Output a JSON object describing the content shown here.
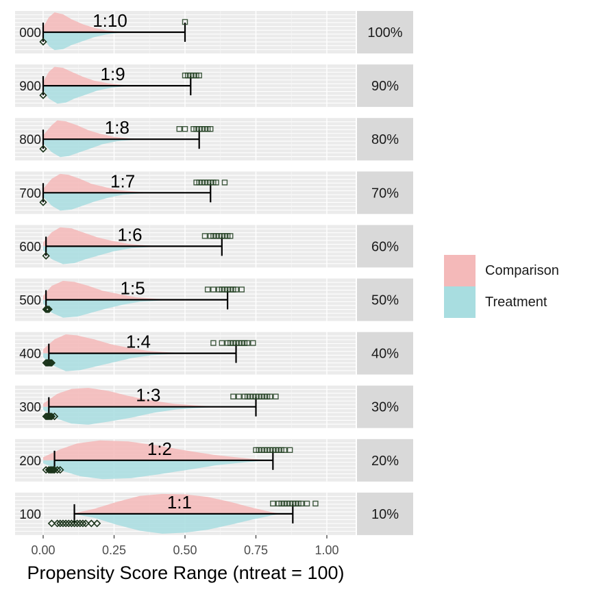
{
  "chart_data": {
    "type": "area",
    "xlabel": "Propensity Score Range (ntreat = 100)",
    "xlim": [
      0,
      1.1
    ],
    "x_ticks": [
      0.0,
      0.25,
      0.5,
      0.75,
      1.0
    ],
    "x_tick_labels": [
      "0.00",
      "0.25",
      "0.50",
      "0.75",
      "1.00"
    ],
    "legend_position": "right",
    "legend": [
      {
        "name": "Comparison",
        "color": "#f4b9b9"
      },
      {
        "name": "Treatment",
        "color": "#a8dde0"
      }
    ],
    "panels": [
      {
        "left_label": "000",
        "strip": "100%",
        "ratio_label": "1:10",
        "range_min": 0.0,
        "range_max": 0.5,
        "diamonds": [
          0.0
        ],
        "squares": [
          0.5
        ],
        "comp_density": [
          [
            0,
            0.25
          ],
          [
            0.02,
            0.75
          ],
          [
            0.04,
            1.0
          ],
          [
            0.07,
            0.9
          ],
          [
            0.1,
            0.65
          ],
          [
            0.14,
            0.4
          ],
          [
            0.18,
            0.22
          ],
          [
            0.22,
            0.1
          ],
          [
            0.26,
            0.04
          ],
          [
            0.3,
            0
          ]
        ],
        "treat_density": [
          [
            0,
            0.25
          ],
          [
            0.02,
            0.7
          ],
          [
            0.04,
            0.9
          ],
          [
            0.07,
            0.85
          ],
          [
            0.1,
            0.65
          ],
          [
            0.14,
            0.45
          ],
          [
            0.18,
            0.25
          ],
          [
            0.22,
            0.12
          ],
          [
            0.26,
            0.04
          ],
          [
            0.3,
            0
          ]
        ]
      },
      {
        "left_label": "900",
        "strip": "90%",
        "ratio_label": "1:9",
        "range_min": 0.0,
        "range_max": 0.52,
        "diamonds": [
          0.0
        ],
        "squares": [
          0.5,
          0.51,
          0.52,
          0.53,
          0.54,
          0.55
        ],
        "comp_density": [
          [
            0,
            0.2
          ],
          [
            0.02,
            0.7
          ],
          [
            0.04,
            0.95
          ],
          [
            0.07,
            0.9
          ],
          [
            0.1,
            0.7
          ],
          [
            0.14,
            0.45
          ],
          [
            0.18,
            0.25
          ],
          [
            0.23,
            0.12
          ],
          [
            0.28,
            0.04
          ],
          [
            0.32,
            0
          ]
        ],
        "treat_density": [
          [
            0,
            0.2
          ],
          [
            0.02,
            0.65
          ],
          [
            0.05,
            0.9
          ],
          [
            0.08,
            0.85
          ],
          [
            0.11,
            0.65
          ],
          [
            0.15,
            0.45
          ],
          [
            0.19,
            0.25
          ],
          [
            0.24,
            0.1
          ],
          [
            0.29,
            0.03
          ],
          [
            0.32,
            0
          ]
        ]
      },
      {
        "left_label": "800",
        "strip": "80%",
        "ratio_label": "1:8",
        "range_min": 0.0,
        "range_max": 0.55,
        "diamonds": [
          0.0
        ],
        "squares": [
          0.48,
          0.5,
          0.53,
          0.54,
          0.55,
          0.56,
          0.57,
          0.58,
          0.59
        ],
        "comp_density": [
          [
            0,
            0.2
          ],
          [
            0.03,
            0.7
          ],
          [
            0.05,
            0.95
          ],
          [
            0.08,
            0.9
          ],
          [
            0.12,
            0.7
          ],
          [
            0.16,
            0.45
          ],
          [
            0.2,
            0.28
          ],
          [
            0.25,
            0.12
          ],
          [
            0.3,
            0.05
          ],
          [
            0.35,
            0
          ]
        ],
        "treat_density": [
          [
            0,
            0.2
          ],
          [
            0.03,
            0.65
          ],
          [
            0.06,
            0.9
          ],
          [
            0.09,
            0.85
          ],
          [
            0.13,
            0.65
          ],
          [
            0.17,
            0.45
          ],
          [
            0.21,
            0.25
          ],
          [
            0.26,
            0.1
          ],
          [
            0.31,
            0.04
          ],
          [
            0.35,
            0
          ]
        ]
      },
      {
        "left_label": "700",
        "strip": "70%",
        "ratio_label": "1:7",
        "range_min": 0.0,
        "range_max": 0.59,
        "diamonds": [
          0.0
        ],
        "squares": [
          0.54,
          0.55,
          0.56,
          0.57,
          0.58,
          0.59,
          0.6,
          0.61,
          0.64
        ],
        "comp_density": [
          [
            0,
            0.2
          ],
          [
            0.03,
            0.7
          ],
          [
            0.06,
            0.95
          ],
          [
            0.09,
            0.9
          ],
          [
            0.13,
            0.7
          ],
          [
            0.17,
            0.45
          ],
          [
            0.22,
            0.28
          ],
          [
            0.27,
            0.12
          ],
          [
            0.33,
            0.05
          ],
          [
            0.38,
            0
          ]
        ],
        "treat_density": [
          [
            0,
            0.2
          ],
          [
            0.03,
            0.65
          ],
          [
            0.06,
            0.9
          ],
          [
            0.1,
            0.85
          ],
          [
            0.14,
            0.65
          ],
          [
            0.18,
            0.45
          ],
          [
            0.23,
            0.25
          ],
          [
            0.28,
            0.1
          ],
          [
            0.34,
            0.04
          ],
          [
            0.38,
            0
          ]
        ]
      },
      {
        "left_label": "600",
        "strip": "60%",
        "ratio_label": "1:6",
        "range_min": 0.01,
        "range_max": 0.63,
        "diamonds": [
          0.01
        ],
        "squares": [
          0.57,
          0.59,
          0.6,
          0.61,
          0.62,
          0.63,
          0.64,
          0.65,
          0.66
        ],
        "comp_density": [
          [
            0,
            0.2
          ],
          [
            0.03,
            0.7
          ],
          [
            0.06,
            0.95
          ],
          [
            0.1,
            0.9
          ],
          [
            0.14,
            0.7
          ],
          [
            0.19,
            0.45
          ],
          [
            0.24,
            0.28
          ],
          [
            0.3,
            0.12
          ],
          [
            0.36,
            0.05
          ],
          [
            0.42,
            0
          ]
        ],
        "treat_density": [
          [
            0,
            0.2
          ],
          [
            0.03,
            0.65
          ],
          [
            0.07,
            0.9
          ],
          [
            0.11,
            0.85
          ],
          [
            0.15,
            0.65
          ],
          [
            0.2,
            0.45
          ],
          [
            0.25,
            0.25
          ],
          [
            0.31,
            0.1
          ],
          [
            0.37,
            0.04
          ],
          [
            0.42,
            0
          ]
        ]
      },
      {
        "left_label": "500",
        "strip": "50%",
        "ratio_label": "1:5",
        "range_min": 0.01,
        "range_max": 0.65,
        "diamonds": [
          0.01,
          0.015,
          0.02
        ],
        "squares": [
          0.58,
          0.6,
          0.62,
          0.63,
          0.64,
          0.65,
          0.66,
          0.67,
          0.68,
          0.7
        ],
        "comp_density": [
          [
            0,
            0.2
          ],
          [
            0.03,
            0.7
          ],
          [
            0.07,
            0.95
          ],
          [
            0.11,
            0.9
          ],
          [
            0.16,
            0.7
          ],
          [
            0.21,
            0.45
          ],
          [
            0.27,
            0.28
          ],
          [
            0.33,
            0.12
          ],
          [
            0.4,
            0.05
          ],
          [
            0.46,
            0
          ]
        ],
        "treat_density": [
          [
            0,
            0.2
          ],
          [
            0.03,
            0.65
          ],
          [
            0.07,
            0.9
          ],
          [
            0.12,
            0.85
          ],
          [
            0.17,
            0.65
          ],
          [
            0.22,
            0.45
          ],
          [
            0.28,
            0.25
          ],
          [
            0.34,
            0.1
          ],
          [
            0.41,
            0.04
          ],
          [
            0.46,
            0
          ]
        ]
      },
      {
        "left_label": "400",
        "strip": "40%",
        "ratio_label": "1:4",
        "range_min": 0.02,
        "range_max": 0.68,
        "diamonds": [
          0.01,
          0.015,
          0.02,
          0.025,
          0.03
        ],
        "squares": [
          0.6,
          0.63,
          0.65,
          0.66,
          0.67,
          0.68,
          0.69,
          0.7,
          0.71,
          0.72,
          0.74
        ],
        "comp_density": [
          [
            0,
            0.2
          ],
          [
            0.04,
            0.7
          ],
          [
            0.08,
            0.95
          ],
          [
            0.12,
            0.9
          ],
          [
            0.18,
            0.7
          ],
          [
            0.24,
            0.45
          ],
          [
            0.3,
            0.28
          ],
          [
            0.37,
            0.12
          ],
          [
            0.44,
            0.05
          ],
          [
            0.52,
            0
          ]
        ],
        "treat_density": [
          [
            0,
            0.2
          ],
          [
            0.04,
            0.65
          ],
          [
            0.08,
            0.9
          ],
          [
            0.13,
            0.85
          ],
          [
            0.19,
            0.65
          ],
          [
            0.25,
            0.45
          ],
          [
            0.31,
            0.25
          ],
          [
            0.38,
            0.1
          ],
          [
            0.45,
            0.04
          ],
          [
            0.52,
            0
          ]
        ]
      },
      {
        "left_label": "300",
        "strip": "30%",
        "ratio_label": "1:3",
        "range_min": 0.02,
        "range_max": 0.75,
        "diamonds": [
          0.01,
          0.015,
          0.02,
          0.025,
          0.03,
          0.04
        ],
        "squares": [
          0.67,
          0.69,
          0.71,
          0.72,
          0.73,
          0.74,
          0.75,
          0.76,
          0.77,
          0.78,
          0.79,
          0.8,
          0.82
        ],
        "comp_density": [
          [
            0,
            0.15
          ],
          [
            0.05,
            0.65
          ],
          [
            0.1,
            0.9
          ],
          [
            0.16,
            0.95
          ],
          [
            0.23,
            0.8
          ],
          [
            0.3,
            0.55
          ],
          [
            0.38,
            0.32
          ],
          [
            0.46,
            0.15
          ],
          [
            0.55,
            0.06
          ],
          [
            0.63,
            0
          ]
        ],
        "treat_density": [
          [
            0,
            0.15
          ],
          [
            0.05,
            0.6
          ],
          [
            0.1,
            0.85
          ],
          [
            0.16,
            0.9
          ],
          [
            0.23,
            0.75
          ],
          [
            0.31,
            0.55
          ],
          [
            0.39,
            0.3
          ],
          [
            0.47,
            0.13
          ],
          [
            0.56,
            0.05
          ],
          [
            0.63,
            0
          ]
        ]
      },
      {
        "left_label": "200",
        "strip": "20%",
        "ratio_label": "1:2",
        "range_min": 0.04,
        "range_max": 0.81,
        "diamonds": [
          0.01,
          0.02,
          0.025,
          0.03,
          0.035,
          0.04,
          0.05,
          0.06
        ],
        "squares": [
          0.75,
          0.76,
          0.77,
          0.78,
          0.79,
          0.8,
          0.81,
          0.82,
          0.83,
          0.84,
          0.85,
          0.87
        ],
        "comp_density": [
          [
            0,
            0.15
          ],
          [
            0.06,
            0.55
          ],
          [
            0.12,
            0.85
          ],
          [
            0.2,
            1.0
          ],
          [
            0.3,
            0.95
          ],
          [
            0.4,
            0.75
          ],
          [
            0.5,
            0.5
          ],
          [
            0.6,
            0.28
          ],
          [
            0.7,
            0.12
          ],
          [
            0.8,
            0
          ]
        ],
        "treat_density": [
          [
            0,
            0.15
          ],
          [
            0.06,
            0.5
          ],
          [
            0.13,
            0.8
          ],
          [
            0.21,
            0.95
          ],
          [
            0.31,
            0.9
          ],
          [
            0.41,
            0.7
          ],
          [
            0.51,
            0.48
          ],
          [
            0.61,
            0.25
          ],
          [
            0.71,
            0.1
          ],
          [
            0.8,
            0
          ]
        ]
      },
      {
        "left_label": "100",
        "strip": "10%",
        "ratio_label": "1:1",
        "range_min": 0.11,
        "range_max": 0.88,
        "diamonds": [
          0.03,
          0.05,
          0.06,
          0.07,
          0.08,
          0.09,
          0.1,
          0.11,
          0.12,
          0.13,
          0.14,
          0.15,
          0.17,
          0.19
        ],
        "squares": [
          0.81,
          0.83,
          0.84,
          0.85,
          0.86,
          0.87,
          0.88,
          0.89,
          0.9,
          0.91,
          0.93,
          0.96
        ],
        "comp_density": [
          [
            0.1,
            0
          ],
          [
            0.18,
            0.25
          ],
          [
            0.26,
            0.6
          ],
          [
            0.34,
            0.9
          ],
          [
            0.42,
            1.0
          ],
          [
            0.5,
            0.98
          ],
          [
            0.58,
            0.85
          ],
          [
            0.66,
            0.6
          ],
          [
            0.74,
            0.3
          ],
          [
            0.8,
            0.1
          ],
          [
            0.84,
            0
          ]
        ],
        "treat_density": [
          [
            0.1,
            0
          ],
          [
            0.18,
            0.2
          ],
          [
            0.26,
            0.55
          ],
          [
            0.34,
            0.85
          ],
          [
            0.42,
            1.0
          ],
          [
            0.5,
            0.95
          ],
          [
            0.58,
            0.8
          ],
          [
            0.66,
            0.55
          ],
          [
            0.74,
            0.28
          ],
          [
            0.8,
            0.1
          ],
          [
            0.84,
            0
          ]
        ]
      }
    ]
  }
}
